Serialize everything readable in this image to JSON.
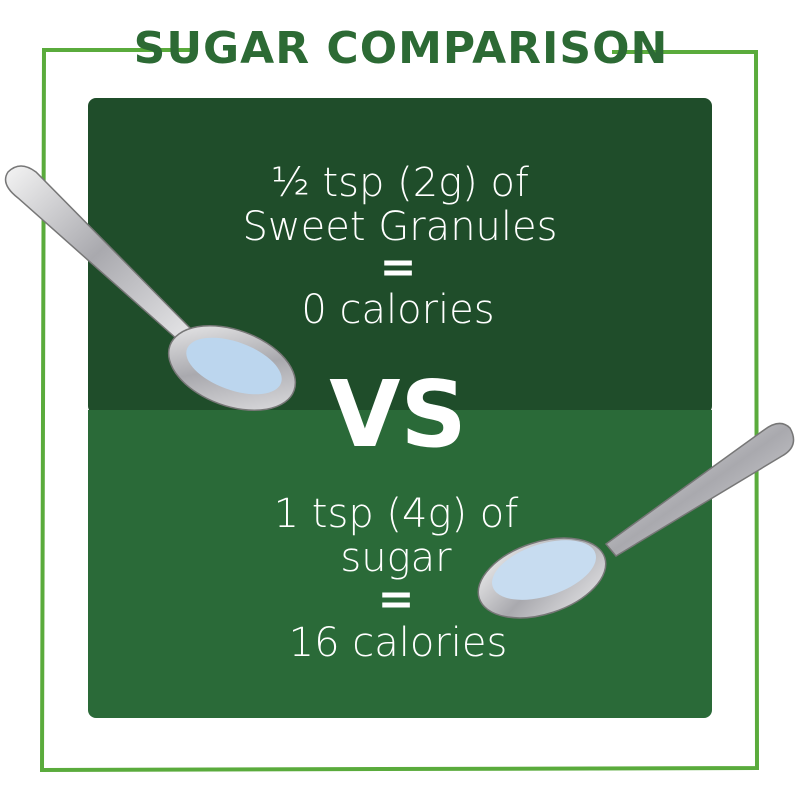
{
  "title": "SUGAR COMPARISON",
  "top": {
    "lines": [
      "½ tsp (2g) of",
      "Sweet Granules",
      "=",
      "0 calories"
    ]
  },
  "versus": "VS",
  "bottom": {
    "lines": [
      "1 tsp (4g) of",
      "sugar",
      "=",
      "16 calories"
    ]
  }
}
